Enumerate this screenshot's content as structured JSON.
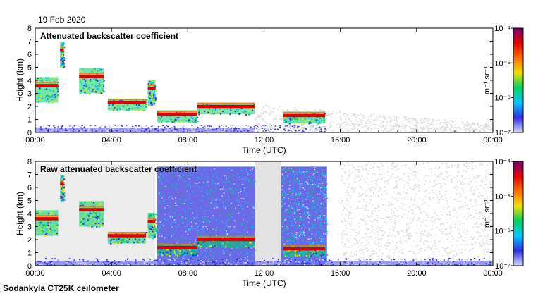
{
  "header": {
    "date": "19 Feb 2020"
  },
  "footer": {
    "instrument": "Sodankyla CT25K ceilometer"
  },
  "colormap": {
    "stops": [
      "#d8d8ff",
      "#3030e0",
      "#00c8ff",
      "#00d060",
      "#f0e000",
      "#ff7000",
      "#e00000",
      "#780070"
    ],
    "missing_color": "#dcdcdc"
  },
  "chart_data": [
    {
      "type": "heatmap",
      "title": "Attenuated backscatter coefficient",
      "xlabel": "Time (UTC)",
      "ylabel": "Height (km)",
      "xlim": [
        0,
        24
      ],
      "ylim": [
        0,
        8
      ],
      "x_ticks": [
        "00:00",
        "04:00",
        "08:00",
        "12:00",
        "16:00",
        "20:00",
        "00:00"
      ],
      "y_ticks": [
        "0",
        "1",
        "2",
        "3",
        "4",
        "5",
        "6",
        "7",
        "8"
      ],
      "colorbar": {
        "label": "m⁻¹ sr⁻¹",
        "scale": "log",
        "range": [
          1e-07,
          0.0001
        ],
        "tick_labels": [
          "10⁻⁴",
          "10⁻⁵",
          "10⁻⁶",
          "10⁻⁷"
        ]
      },
      "cloud_layers": [
        {
          "start": 0.0,
          "end": 1.2,
          "height": 3.6
        },
        {
          "start": 1.3,
          "end": 1.5,
          "height": 6.3
        },
        {
          "start": 2.3,
          "end": 3.6,
          "height": 4.3
        },
        {
          "start": 3.8,
          "end": 5.8,
          "height": 2.3
        },
        {
          "start": 5.9,
          "end": 6.3,
          "height": 3.4
        },
        {
          "start": 6.4,
          "end": 8.5,
          "height": 1.4
        },
        {
          "start": 8.5,
          "end": 11.5,
          "height": 2.0
        },
        {
          "start": 13.0,
          "end": 15.2,
          "height": 1.3
        }
      ]
    },
    {
      "type": "heatmap",
      "title": "Raw attenuated backscatter coefficient",
      "xlabel": "Time (UTC)",
      "ylabel": "Height (km)",
      "xlim": [
        0,
        24
      ],
      "ylim": [
        0,
        8
      ],
      "x_ticks": [
        "00:00",
        "04:00",
        "08:00",
        "12:00",
        "16:00",
        "20:00",
        "00:00"
      ],
      "y_ticks": [
        "0",
        "1",
        "2",
        "3",
        "4",
        "5",
        "6",
        "7",
        "8"
      ],
      "colorbar": {
        "label": "m⁻¹ sr⁻¹",
        "scale": "log",
        "range": [
          1e-07,
          0.0001
        ],
        "tick_labels": [
          "10⁻⁴",
          "10⁻⁵",
          "10⁻⁶",
          "10⁻⁷"
        ]
      },
      "cloud_layers": [
        {
          "start": 0.0,
          "end": 1.2,
          "height": 3.6
        },
        {
          "start": 1.3,
          "end": 1.5,
          "height": 6.3
        },
        {
          "start": 2.3,
          "end": 3.6,
          "height": 4.3
        },
        {
          "start": 3.8,
          "end": 5.8,
          "height": 2.3
        },
        {
          "start": 5.9,
          "end": 6.3,
          "height": 3.4
        },
        {
          "start": 6.4,
          "end": 8.5,
          "height": 1.4
        },
        {
          "start": 8.5,
          "end": 11.5,
          "height": 2.0
        },
        {
          "start": 13.0,
          "end": 15.2,
          "height": 1.3
        }
      ]
    }
  ]
}
